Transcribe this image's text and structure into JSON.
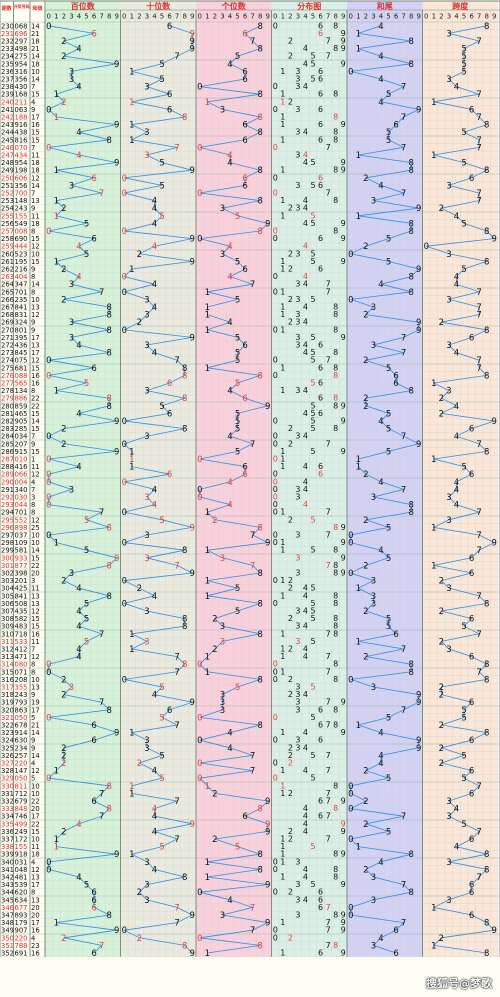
{
  "headers": {
    "period": "期数",
    "open": "开奖号码",
    "sum": "和值",
    "hundreds": "百位数",
    "tens": "十位数",
    "units": "个位数",
    "distribution": "分布图",
    "sum_tail": "和尾",
    "span": "跨度"
  },
  "digit_header": [
    "0",
    "1",
    "2",
    "3",
    "4",
    "5",
    "6",
    "7",
    "8",
    "9"
  ],
  "rows": [
    [
      "230",
      "068",
      "14",
      0,
      6,
      8
    ],
    [
      "231",
      "696",
      "21",
      6,
      9,
      6
    ],
    [
      "232",
      "297",
      "18",
      2,
      9,
      7
    ],
    [
      "233",
      "498",
      "21",
      4,
      9,
      8
    ],
    [
      "234",
      "275",
      "14",
      2,
      7,
      5
    ],
    [
      "235",
      "954",
      "18",
      9,
      5,
      4
    ],
    [
      "236",
      "316",
      "10",
      3,
      1,
      6
    ],
    [
      "237",
      "356",
      "14",
      3,
      5,
      6
    ],
    [
      "238",
      "430",
      "7",
      4,
      3,
      0
    ],
    [
      "239",
      "168",
      "15",
      1,
      6,
      8
    ],
    [
      "240",
      "211",
      "4",
      2,
      1,
      1
    ],
    [
      "241",
      "063",
      "9",
      0,
      6,
      3
    ],
    [
      "242",
      "188",
      "17",
      1,
      8,
      8
    ],
    [
      "243",
      "916",
      "16",
      9,
      1,
      6
    ],
    [
      "244",
      "438",
      "15",
      4,
      3,
      8
    ],
    [
      "245",
      "816",
      "15",
      8,
      1,
      6
    ],
    [
      "246",
      "070",
      "7",
      0,
      7,
      0
    ],
    [
      "247",
      "434",
      "11",
      4,
      3,
      4
    ],
    [
      "248",
      "954",
      "18",
      9,
      5,
      4
    ],
    [
      "249",
      "198",
      "18",
      1,
      9,
      8
    ],
    [
      "250",
      "606",
      "12",
      6,
      0,
      6
    ],
    [
      "251",
      "356",
      "14",
      3,
      5,
      6
    ],
    [
      "252",
      "700",
      "7",
      7,
      0,
      0
    ],
    [
      "253",
      "148",
      "13",
      1,
      4,
      8
    ],
    [
      "254",
      "243",
      "9",
      2,
      4,
      3
    ],
    [
      "255",
      "155",
      "11",
      1,
      5,
      5
    ],
    [
      "256",
      "549",
      "18",
      5,
      4,
      9
    ],
    [
      "257",
      "008",
      "8",
      0,
      0,
      8
    ],
    [
      "258",
      "690",
      "15",
      6,
      9,
      0
    ],
    [
      "259",
      "444",
      "12",
      4,
      4,
      4
    ],
    [
      "260",
      "523",
      "10",
      5,
      2,
      3
    ],
    [
      "261",
      "195",
      "15",
      1,
      9,
      5
    ],
    [
      "262",
      "216",
      "9",
      2,
      1,
      6
    ],
    [
      "263",
      "404",
      "8",
      4,
      0,
      4
    ],
    [
      "264",
      "347",
      "14",
      3,
      4,
      7
    ],
    [
      "265",
      "701",
      "8",
      7,
      0,
      1
    ],
    [
      "266",
      "235",
      "10",
      2,
      3,
      5
    ],
    [
      "267",
      "841",
      "13",
      8,
      4,
      1
    ],
    [
      "268",
      "831",
      "12",
      8,
      3,
      1
    ],
    [
      "269",
      "324",
      "9",
      3,
      2,
      4
    ],
    [
      "270",
      "801",
      "9",
      8,
      0,
      1
    ],
    [
      "271",
      "395",
      "17",
      3,
      9,
      5
    ],
    [
      "272",
      "436",
      "13",
      4,
      3,
      6
    ],
    [
      "273",
      "845",
      "17",
      8,
      4,
      5
    ],
    [
      "274",
      "075",
      "12",
      0,
      7,
      5
    ],
    [
      "275",
      "681",
      "15",
      6,
      8,
      1
    ],
    [
      "276",
      "088",
      "16",
      0,
      8,
      8
    ],
    [
      "277",
      "565",
      "16",
      5,
      6,
      5
    ],
    [
      "278",
      "134",
      "8",
      1,
      3,
      4
    ],
    [
      "279",
      "886",
      "22",
      8,
      8,
      6
    ],
    [
      "280",
      "859",
      "22",
      8,
      5,
      9
    ],
    [
      "281",
      "465",
      "15",
      4,
      6,
      5
    ],
    [
      "282",
      "905",
      "14",
      9,
      0,
      5
    ],
    [
      "283",
      "285",
      "15",
      2,
      8,
      5
    ],
    [
      "284",
      "034",
      "7",
      0,
      3,
      4
    ],
    [
      "285",
      "207",
      "9",
      2,
      0,
      7
    ],
    [
      "286",
      "915",
      "15",
      9,
      1,
      5
    ],
    [
      "287",
      "010",
      "1",
      0,
      1,
      0
    ],
    [
      "288",
      "416",
      "11",
      4,
      1,
      6
    ],
    [
      "289",
      "066",
      "12",
      0,
      6,
      6
    ],
    [
      "290",
      "004",
      "4",
      0,
      0,
      4
    ],
    [
      "291",
      "340",
      "7",
      3,
      4,
      0
    ],
    [
      "292",
      "030",
      "3",
      0,
      3,
      0
    ],
    [
      "293",
      "044",
      "8",
      0,
      4,
      4
    ],
    [
      "294",
      "701",
      "8",
      7,
      0,
      1
    ],
    [
      "295",
      "552",
      "12",
      5,
      5,
      2
    ],
    [
      "296",
      "898",
      "25",
      8,
      9,
      8
    ],
    [
      "297",
      "037",
      "10",
      0,
      3,
      7
    ],
    [
      "298",
      "109",
      "10",
      1,
      0,
      9
    ],
    [
      "299",
      "581",
      "14",
      5,
      8,
      1
    ],
    [
      "300",
      "933",
      "15",
      9,
      3,
      3
    ],
    [
      "301",
      "877",
      "22",
      8,
      7,
      7
    ],
    [
      "302",
      "398",
      "20",
      3,
      9,
      8
    ],
    [
      "303",
      "201",
      "3",
      2,
      0,
      1
    ],
    [
      "304",
      "425",
      "11",
      4,
      2,
      5
    ],
    [
      "305",
      "841",
      "13",
      8,
      4,
      1
    ],
    [
      "306",
      "508",
      "13",
      5,
      0,
      8
    ],
    [
      "307",
      "435",
      "12",
      4,
      3,
      5
    ],
    [
      "308",
      "582",
      "15",
      5,
      8,
      2
    ],
    [
      "309",
      "483",
      "15",
      4,
      8,
      3
    ],
    [
      "310",
      "718",
      "16",
      7,
      1,
      8
    ],
    [
      "311",
      "533",
      "11",
      5,
      3,
      3
    ],
    [
      "312",
      "412",
      "7",
      4,
      1,
      2
    ],
    [
      "313",
      "471",
      "12",
      4,
      7,
      1
    ],
    [
      "314",
      "080",
      "8",
      0,
      8,
      0
    ],
    [
      "315",
      "071",
      "8",
      0,
      7,
      1
    ],
    [
      "316",
      "208",
      "10",
      2,
      0,
      8
    ],
    [
      "317",
      "355",
      "13",
      3,
      5,
      5
    ],
    [
      "318",
      "243",
      "9",
      2,
      4,
      3
    ],
    [
      "319",
      "793",
      "19",
      7,
      9,
      3
    ],
    [
      "320",
      "863",
      "17",
      8,
      6,
      3
    ],
    [
      "321",
      "050",
      "5",
      0,
      5,
      0
    ],
    [
      "322",
      "678",
      "21",
      6,
      7,
      8
    ],
    [
      "323",
      "914",
      "14",
      9,
      1,
      4
    ],
    [
      "324",
      "630",
      "9",
      6,
      3,
      0
    ],
    [
      "325",
      "234",
      "9",
      2,
      3,
      4
    ],
    [
      "326",
      "257",
      "14",
      2,
      5,
      7
    ],
    [
      "327",
      "220",
      "4",
      2,
      2,
      0
    ],
    [
      "328",
      "147",
      "12",
      1,
      4,
      7
    ],
    [
      "329",
      "050",
      "5",
      0,
      5,
      0
    ],
    [
      "330",
      "811",
      "10",
      8,
      1,
      1
    ],
    [
      "331",
      "712",
      "10",
      7,
      1,
      2
    ],
    [
      "332",
      "679",
      "22",
      6,
      7,
      9
    ],
    [
      "333",
      "848",
      "20",
      8,
      4,
      8
    ],
    [
      "334",
      "746",
      "17",
      7,
      4,
      6
    ],
    [
      "335",
      "499",
      "22",
      4,
      9,
      9
    ],
    [
      "336",
      "249",
      "15",
      2,
      4,
      9
    ],
    [
      "337",
      "172",
      "10",
      1,
      7,
      2
    ],
    [
      "338",
      "155",
      "11",
      1,
      5,
      5
    ],
    [
      "339",
      "918",
      "18",
      9,
      1,
      8
    ],
    [
      "340",
      "031",
      "4",
      0,
      3,
      1
    ],
    [
      "341",
      "048",
      "12",
      0,
      4,
      8
    ],
    [
      "342",
      "481",
      "13",
      4,
      8,
      1
    ],
    [
      "343",
      "539",
      "17",
      5,
      3,
      9
    ],
    [
      "344",
      "620",
      "8",
      6,
      2,
      0
    ],
    [
      "345",
      "634",
      "13",
      6,
      3,
      4
    ],
    [
      "346",
      "677",
      "20",
      6,
      7,
      7
    ],
    [
      "347",
      "893",
      "20",
      8,
      9,
      3
    ],
    [
      "348",
      "179",
      "17",
      1,
      7,
      9
    ],
    [
      "349",
      "907",
      "16",
      9,
      0,
      7
    ],
    [
      "350",
      "220",
      "4",
      2,
      2,
      0
    ],
    [
      "351",
      "788",
      "23",
      7,
      8,
      8
    ],
    [
      "352",
      "691",
      "16",
      6,
      9,
      1
    ]
  ],
  "palette": {
    "hundreds": "#d8f2da",
    "tens": "#eceadf",
    "units": "#fbd0dc",
    "distribution": "#dcefe6",
    "sum_tail": "#d4d1f5",
    "span": "#fbe6d8",
    "line": "#2a8fe8",
    "highlight": "#e83f3f",
    "header_text": "#e03030"
  },
  "watermark": "搜狐号@梦歌"
}
